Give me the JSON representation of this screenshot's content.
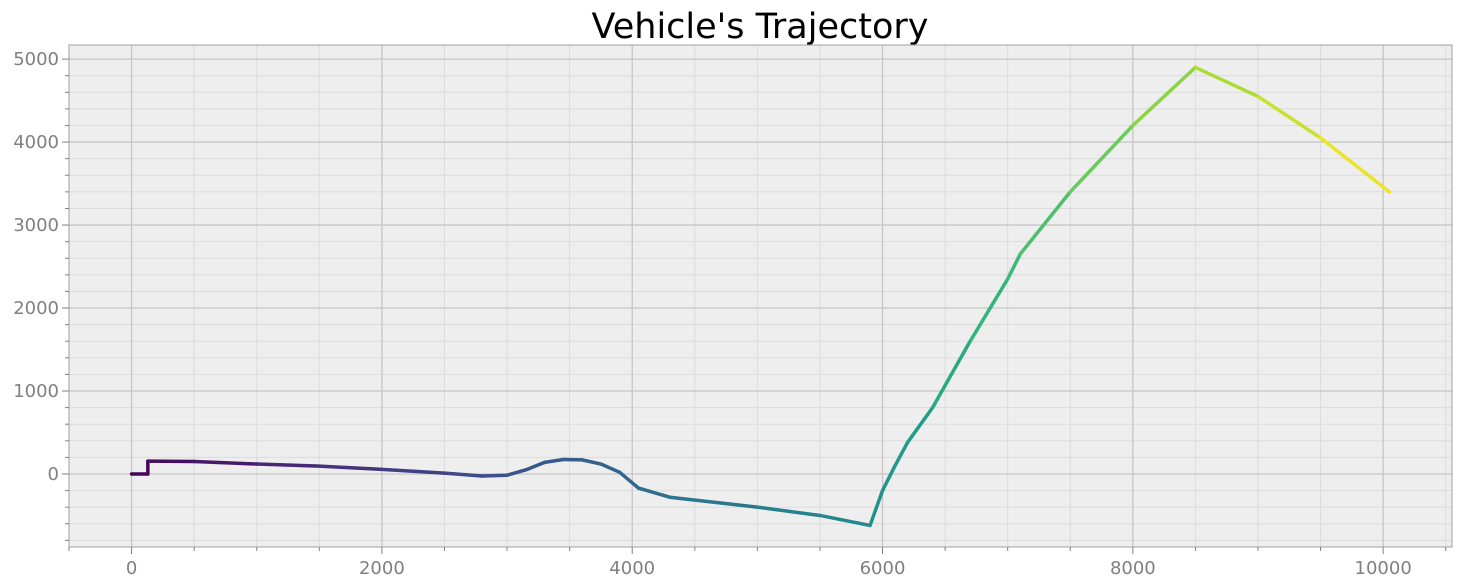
{
  "chart_data": {
    "type": "line",
    "title": "Vehicle's Trajectory",
    "xlabel": "",
    "ylabel": "",
    "xlim": [
      -500,
      10550
    ],
    "ylim": [
      -880,
      5170
    ],
    "x_ticks": [
      0,
      2000,
      4000,
      6000,
      8000,
      10000
    ],
    "y_ticks": [
      0,
      1000,
      2000,
      3000,
      4000,
      5000
    ],
    "x_tick_labels": [
      "0",
      "2000",
      "4000",
      "6000",
      "8000",
      "10000"
    ],
    "y_tick_labels": [
      "0",
      "1000",
      "2000",
      "3000",
      "4000",
      "5000"
    ],
    "grid": true,
    "minor_grid": true,
    "background": "#eeeeee",
    "colormap": "viridis",
    "series": [
      {
        "x": [
          0,
          130,
          130,
          500,
          1000,
          1500,
          2000,
          2500,
          2800,
          3000,
          3150,
          3300,
          3450,
          3600,
          3750,
          3900,
          4050,
          4300,
          5000,
          5500,
          5900,
          6000,
          6100,
          6200,
          6400,
          6700,
          7000,
          7100,
          7500,
          8000,
          8500,
          9000,
          9500,
          10050
        ],
        "y": [
          0,
          0,
          155,
          150,
          120,
          95,
          55,
          10,
          -25,
          -15,
          50,
          140,
          175,
          170,
          120,
          20,
          -170,
          -280,
          -400,
          -500,
          -620,
          -200,
          100,
          380,
          800,
          1600,
          2350,
          2650,
          3400,
          4200,
          4900,
          4550,
          4050,
          3400
        ]
      }
    ]
  }
}
